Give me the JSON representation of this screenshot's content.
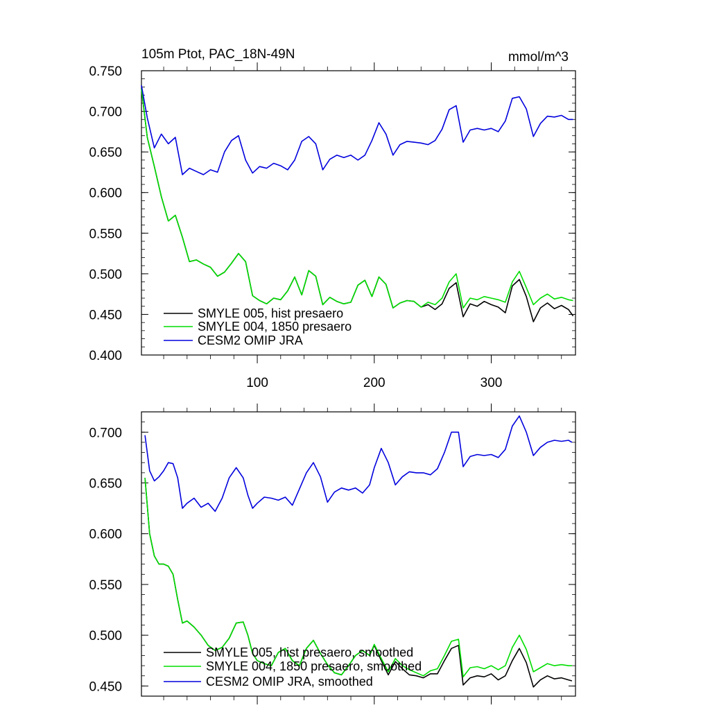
{
  "units": "mmol/m^3",
  "chart_data": [
    {
      "type": "line",
      "title": "105m Ptot, PAC_18N-49N",
      "units": "mmol/m^3",
      "xlim": [
        1,
        372
      ],
      "ylim": [
        0.4,
        0.75
      ],
      "xticks": [
        100,
        200,
        300
      ],
      "xtick_labels": [
        "100",
        "200",
        "300"
      ],
      "yticks": [
        0.4,
        0.45,
        0.5,
        0.55,
        0.6,
        0.65,
        0.7,
        0.75
      ],
      "ytick_labels": [
        "0.400",
        "0.450",
        "0.500",
        "0.550",
        "0.600",
        "0.650",
        "0.700",
        "0.750"
      ],
      "legend_position": "bottom-left",
      "grid": false,
      "series": [
        {
          "name": "SMYLE 005, hist presaero",
          "color": "#000000",
          "x": [
            1,
            6,
            12,
            18,
            24,
            30,
            36,
            42,
            48,
            54,
            60,
            66,
            72,
            78,
            84,
            90,
            96,
            102,
            108,
            114,
            120,
            126,
            132,
            138,
            144,
            150,
            156,
            162,
            168,
            174,
            180,
            186,
            192,
            198,
            204,
            210,
            216,
            222,
            228,
            234,
            240,
            246,
            252,
            258,
            264,
            270,
            276,
            282,
            288,
            294,
            300,
            306,
            312,
            318,
            324,
            330,
            336,
            342,
            348,
            354,
            360,
            366,
            370
          ],
          "values": [
            0.728,
            0.668,
            0.632,
            0.595,
            0.565,
            0.572,
            0.545,
            0.515,
            0.517,
            0.512,
            0.508,
            0.497,
            0.502,
            0.513,
            0.525,
            0.515,
            0.473,
            0.467,
            0.463,
            0.47,
            0.468,
            0.479,
            0.496,
            0.474,
            0.504,
            0.497,
            0.462,
            0.471,
            0.466,
            0.463,
            0.465,
            0.486,
            0.492,
            0.472,
            0.496,
            0.487,
            0.458,
            0.464,
            0.467,
            0.466,
            0.459,
            0.462,
            0.456,
            0.463,
            0.482,
            0.489,
            0.447,
            0.463,
            0.46,
            0.466,
            0.462,
            0.459,
            0.452,
            0.485,
            0.493,
            0.472,
            0.441,
            0.458,
            0.464,
            0.457,
            0.461,
            0.456,
            0.448
          ]
        },
        {
          "name": "SMYLE 004, 1850 presaero",
          "color": "#00dd00",
          "x": [
            1,
            6,
            12,
            18,
            24,
            30,
            36,
            42,
            48,
            54,
            60,
            66,
            72,
            78,
            84,
            90,
            96,
            102,
            108,
            114,
            120,
            126,
            132,
            138,
            144,
            150,
            156,
            162,
            168,
            174,
            180,
            186,
            192,
            198,
            204,
            210,
            216,
            222,
            228,
            234,
            240,
            246,
            252,
            258,
            264,
            270,
            276,
            282,
            288,
            294,
            300,
            306,
            312,
            318,
            324,
            330,
            336,
            342,
            348,
            354,
            360,
            366,
            370
          ],
          "values": [
            0.728,
            0.668,
            0.632,
            0.595,
            0.565,
            0.572,
            0.545,
            0.515,
            0.517,
            0.512,
            0.508,
            0.497,
            0.502,
            0.513,
            0.525,
            0.515,
            0.473,
            0.467,
            0.463,
            0.47,
            0.468,
            0.479,
            0.496,
            0.474,
            0.504,
            0.497,
            0.462,
            0.471,
            0.466,
            0.463,
            0.465,
            0.486,
            0.492,
            0.472,
            0.496,
            0.487,
            0.458,
            0.464,
            0.467,
            0.466,
            0.459,
            0.465,
            0.462,
            0.47,
            0.49,
            0.5,
            0.458,
            0.47,
            0.468,
            0.472,
            0.47,
            0.468,
            0.465,
            0.49,
            0.503,
            0.483,
            0.462,
            0.47,
            0.475,
            0.469,
            0.471,
            0.468,
            0.467
          ]
        },
        {
          "name": "CESM2 OMIP JRA",
          "color": "#0000dd",
          "x": [
            1,
            6,
            12,
            18,
            24,
            30,
            36,
            42,
            48,
            54,
            60,
            66,
            72,
            78,
            84,
            90,
            96,
            102,
            108,
            114,
            120,
            126,
            132,
            138,
            144,
            150,
            156,
            162,
            168,
            174,
            180,
            186,
            192,
            198,
            204,
            210,
            216,
            222,
            228,
            234,
            240,
            246,
            252,
            258,
            264,
            270,
            276,
            282,
            288,
            294,
            300,
            306,
            312,
            318,
            324,
            330,
            336,
            342,
            348,
            354,
            360,
            366,
            370
          ],
          "values": [
            0.732,
            0.692,
            0.655,
            0.672,
            0.66,
            0.668,
            0.622,
            0.63,
            0.626,
            0.622,
            0.628,
            0.625,
            0.65,
            0.664,
            0.67,
            0.64,
            0.624,
            0.632,
            0.63,
            0.636,
            0.633,
            0.628,
            0.64,
            0.663,
            0.669,
            0.66,
            0.628,
            0.641,
            0.646,
            0.643,
            0.646,
            0.64,
            0.646,
            0.664,
            0.686,
            0.672,
            0.646,
            0.659,
            0.663,
            0.662,
            0.661,
            0.659,
            0.664,
            0.678,
            0.702,
            0.707,
            0.662,
            0.677,
            0.679,
            0.677,
            0.679,
            0.675,
            0.688,
            0.716,
            0.718,
            0.703,
            0.669,
            0.685,
            0.694,
            0.693,
            0.695,
            0.69,
            0.69
          ]
        }
      ]
    },
    {
      "type": "line",
      "title": "",
      "xlim": [
        1,
        372
      ],
      "ylim": [
        0.44,
        0.72
      ],
      "xticks": [
        100,
        200,
        300
      ],
      "yticks": [
        0.45,
        0.5,
        0.55,
        0.6,
        0.65,
        0.7
      ],
      "ytick_labels": [
        "0.450",
        "0.500",
        "0.550",
        "0.600",
        "0.650",
        "0.700"
      ],
      "legend_position": "bottom-left",
      "grid": false,
      "series": [
        {
          "name": "SMYLE 005, hist presaero, smoothed",
          "color": "#000000",
          "x": [
            4,
            8,
            12,
            16,
            20,
            24,
            28,
            32,
            36,
            40,
            46,
            52,
            58,
            64,
            70,
            76,
            82,
            88,
            92,
            96,
            100,
            106,
            112,
            118,
            124,
            130,
            136,
            142,
            148,
            154,
            160,
            166,
            172,
            178,
            184,
            190,
            196,
            200,
            206,
            212,
            218,
            224,
            230,
            236,
            242,
            248,
            254,
            260,
            266,
            272,
            276,
            282,
            288,
            294,
            300,
            306,
            312,
            318,
            324,
            330,
            336,
            342,
            348,
            354,
            360,
            366,
            369
          ],
          "values": [
            0.655,
            0.6,
            0.578,
            0.57,
            0.57,
            0.568,
            0.56,
            0.535,
            0.512,
            0.514,
            0.508,
            0.5,
            0.49,
            0.485,
            0.488,
            0.497,
            0.512,
            0.513,
            0.5,
            0.482,
            0.475,
            0.472,
            0.47,
            0.483,
            0.487,
            0.475,
            0.47,
            0.487,
            0.495,
            0.482,
            0.471,
            0.463,
            0.461,
            0.47,
            0.48,
            0.485,
            0.48,
            0.49,
            0.475,
            0.461,
            0.474,
            0.467,
            0.461,
            0.46,
            0.458,
            0.462,
            0.462,
            0.475,
            0.487,
            0.49,
            0.451,
            0.458,
            0.46,
            0.459,
            0.462,
            0.456,
            0.46,
            0.475,
            0.487,
            0.473,
            0.449,
            0.456,
            0.46,
            0.457,
            0.458,
            0.456,
            0.455
          ]
        },
        {
          "name": "SMYLE 004, 1850 presaero, smoothed",
          "color": "#00dd00",
          "x": [
            4,
            8,
            12,
            16,
            20,
            24,
            28,
            32,
            36,
            40,
            46,
            52,
            58,
            64,
            70,
            76,
            82,
            88,
            92,
            96,
            100,
            106,
            112,
            118,
            124,
            130,
            136,
            142,
            148,
            154,
            160,
            166,
            172,
            178,
            184,
            190,
            196,
            200,
            206,
            212,
            218,
            224,
            230,
            236,
            242,
            248,
            254,
            260,
            266,
            272,
            276,
            282,
            288,
            294,
            300,
            306,
            312,
            318,
            324,
            330,
            336,
            342,
            348,
            354,
            360,
            366,
            369
          ],
          "values": [
            0.655,
            0.6,
            0.578,
            0.57,
            0.57,
            0.568,
            0.56,
            0.535,
            0.512,
            0.514,
            0.508,
            0.5,
            0.49,
            0.485,
            0.488,
            0.497,
            0.512,
            0.513,
            0.5,
            0.482,
            0.475,
            0.472,
            0.47,
            0.483,
            0.487,
            0.475,
            0.47,
            0.487,
            0.495,
            0.482,
            0.471,
            0.463,
            0.461,
            0.47,
            0.48,
            0.485,
            0.48,
            0.491,
            0.477,
            0.464,
            0.477,
            0.47,
            0.466,
            0.463,
            0.46,
            0.465,
            0.467,
            0.48,
            0.494,
            0.496,
            0.459,
            0.468,
            0.469,
            0.467,
            0.47,
            0.466,
            0.47,
            0.488,
            0.5,
            0.486,
            0.464,
            0.468,
            0.472,
            0.47,
            0.471,
            0.47,
            0.47
          ]
        },
        {
          "name": "CESM2 OMIP JRA, smoothed",
          "color": "#0000dd",
          "x": [
            4,
            8,
            12,
            16,
            20,
            24,
            28,
            32,
            36,
            40,
            46,
            52,
            58,
            64,
            70,
            76,
            82,
            88,
            92,
            96,
            100,
            106,
            112,
            118,
            124,
            130,
            136,
            142,
            148,
            154,
            160,
            166,
            172,
            178,
            184,
            190,
            196,
            200,
            206,
            212,
            218,
            224,
            230,
            236,
            242,
            248,
            254,
            260,
            266,
            272,
            276,
            282,
            288,
            294,
            300,
            306,
            312,
            318,
            324,
            330,
            336,
            342,
            348,
            354,
            360,
            366,
            369
          ],
          "values": [
            0.697,
            0.662,
            0.652,
            0.656,
            0.662,
            0.67,
            0.669,
            0.655,
            0.625,
            0.63,
            0.635,
            0.626,
            0.63,
            0.622,
            0.635,
            0.655,
            0.665,
            0.655,
            0.638,
            0.625,
            0.63,
            0.636,
            0.635,
            0.633,
            0.636,
            0.628,
            0.644,
            0.66,
            0.67,
            0.656,
            0.631,
            0.641,
            0.645,
            0.643,
            0.645,
            0.64,
            0.648,
            0.665,
            0.684,
            0.67,
            0.648,
            0.656,
            0.661,
            0.66,
            0.66,
            0.658,
            0.664,
            0.68,
            0.7,
            0.7,
            0.666,
            0.676,
            0.678,
            0.677,
            0.678,
            0.675,
            0.683,
            0.706,
            0.716,
            0.7,
            0.677,
            0.685,
            0.69,
            0.692,
            0.691,
            0.692,
            0.69
          ]
        }
      ]
    }
  ]
}
